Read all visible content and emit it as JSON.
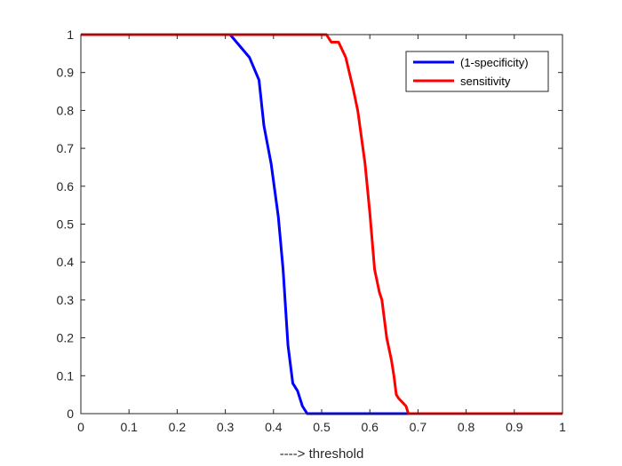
{
  "chart_data": {
    "type": "line",
    "xlabel": "----> threshold",
    "ylabel": "",
    "xlim": [
      0,
      1
    ],
    "ylim": [
      0,
      1
    ],
    "xticks": [
      0,
      0.1,
      0.2,
      0.3,
      0.4,
      0.5,
      0.6,
      0.7,
      0.8,
      0.9,
      1
    ],
    "yticks": [
      0,
      0.1,
      0.2,
      0.3,
      0.4,
      0.5,
      0.6,
      0.7,
      0.8,
      0.9,
      1
    ],
    "xtick_labels": [
      "0",
      "0.1",
      "0.2",
      "0.3",
      "0.4",
      "0.5",
      "0.6",
      "0.7",
      "0.8",
      "0.9",
      "1"
    ],
    "ytick_labels": [
      "0",
      "0.1",
      "0.2",
      "0.3",
      "0.4",
      "0.5",
      "0.6",
      "0.7",
      "0.8",
      "0.9",
      "1"
    ],
    "grid": false,
    "box": true,
    "legend_position": "top-right",
    "series": [
      {
        "name": "(1-specificity)",
        "color": "#0000ff",
        "x": [
          0,
          0.3,
          0.31,
          0.35,
          0.37,
          0.38,
          0.395,
          0.41,
          0.42,
          0.43,
          0.44,
          0.45,
          0.46,
          0.47,
          0.5,
          0.6,
          0.7,
          0.8,
          0.9,
          1.0
        ],
        "y": [
          1,
          1,
          1,
          0.94,
          0.88,
          0.76,
          0.66,
          0.52,
          0.38,
          0.18,
          0.08,
          0.06,
          0.02,
          0,
          0,
          0,
          0,
          0,
          0,
          0
        ]
      },
      {
        "name": "sensitivity",
        "color": "#ff0000",
        "x": [
          0,
          0.5,
          0.51,
          0.52,
          0.535,
          0.55,
          0.565,
          0.575,
          0.59,
          0.6,
          0.61,
          0.62,
          0.625,
          0.635,
          0.645,
          0.65,
          0.655,
          0.66,
          0.675,
          0.68,
          0.7,
          0.8,
          0.9,
          1.0
        ],
        "y": [
          1,
          1,
          1,
          0.98,
          0.98,
          0.94,
          0.86,
          0.8,
          0.66,
          0.53,
          0.38,
          0.32,
          0.3,
          0.2,
          0.14,
          0.1,
          0.05,
          0.04,
          0.02,
          0,
          0,
          0,
          0,
          0
        ]
      }
    ]
  }
}
